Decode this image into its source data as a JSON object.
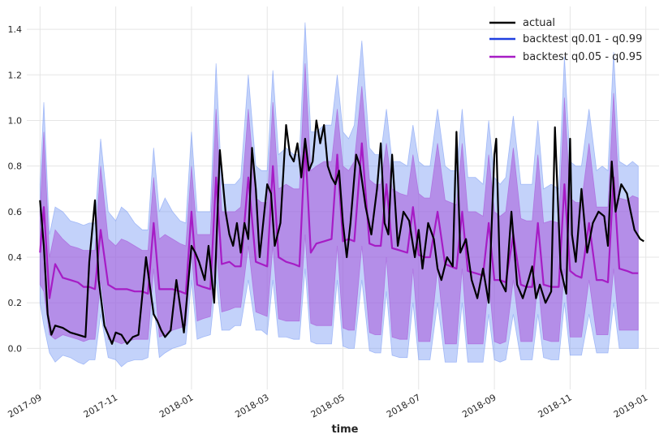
{
  "chart_data": {
    "type": "line",
    "title": "",
    "xlabel": "time",
    "ylabel": "",
    "grid": true,
    "legend_position": "top-right",
    "x_ticks": [
      "2017-09",
      "2017-11",
      "2018-01",
      "2018-03",
      "2018-05",
      "2018-07",
      "2018-09",
      "2018-11",
      "2019-01"
    ],
    "y_ticks": [
      "0.0",
      "0.2",
      "0.4",
      "0.6",
      "0.8",
      "1.0",
      "1.2",
      "1.4"
    ],
    "xlim": [
      -0.35,
      16.35
    ],
    "ylim": [
      -0.18,
      1.5
    ],
    "x_unit": "months since 2017-09",
    "series": [
      {
        "name": "actual",
        "color": "#000000",
        "x": [
          0.0,
          0.1,
          0.2,
          0.3,
          0.4,
          0.6,
          0.8,
          1.0,
          1.2,
          1.3,
          1.45,
          1.55,
          1.7,
          1.9,
          2.0,
          2.15,
          2.3,
          2.45,
          2.6,
          2.8,
          3.0,
          3.1,
          3.2,
          3.3,
          3.45,
          3.6,
          3.8,
          4.0,
          4.1,
          4.2,
          4.35,
          4.45,
          4.6,
          4.75,
          4.9,
          5.0,
          5.1,
          5.2,
          5.3,
          5.4,
          5.5,
          5.6,
          5.7,
          5.8,
          6.0,
          6.1,
          6.2,
          6.35,
          6.5,
          6.6,
          6.7,
          6.8,
          6.9,
          7.0,
          7.1,
          7.2,
          7.3,
          7.4,
          7.5,
          7.6,
          7.7,
          7.8,
          7.9,
          8.0,
          8.1,
          8.2,
          8.35,
          8.45,
          8.6,
          8.75,
          8.9,
          9.0,
          9.1,
          9.2,
          9.3,
          9.45,
          9.6,
          9.75,
          9.9,
          10.0,
          10.1,
          10.25,
          10.4,
          10.5,
          10.6,
          10.75,
          10.9,
          11.0,
          11.1,
          11.25,
          11.4,
          11.55,
          11.7,
          11.85,
          12.0,
          12.05,
          12.15,
          12.3,
          12.45,
          12.6,
          12.75,
          12.9,
          13.0,
          13.1,
          13.2,
          13.35,
          13.5,
          13.6,
          13.75,
          13.9,
          14.0,
          14.05,
          14.15,
          14.3,
          14.45,
          14.6,
          14.75,
          14.9,
          15.0,
          15.1,
          15.2,
          15.35,
          15.5,
          15.6,
          15.7,
          15.85,
          15.95
        ],
        "values": [
          0.65,
          0.45,
          0.15,
          0.06,
          0.1,
          0.09,
          0.07,
          0.06,
          0.05,
          0.38,
          0.65,
          0.3,
          0.1,
          0.02,
          0.07,
          0.06,
          0.02,
          0.05,
          0.06,
          0.4,
          0.15,
          0.12,
          0.08,
          0.05,
          0.08,
          0.3,
          0.07,
          0.45,
          0.42,
          0.38,
          0.3,
          0.45,
          0.2,
          0.87,
          0.6,
          0.5,
          0.45,
          0.55,
          0.42,
          0.55,
          0.48,
          0.88,
          0.7,
          0.4,
          0.72,
          0.68,
          0.45,
          0.55,
          0.98,
          0.85,
          0.82,
          0.9,
          0.75,
          0.92,
          0.78,
          0.82,
          1.0,
          0.9,
          0.98,
          0.8,
          0.75,
          0.72,
          0.78,
          0.55,
          0.4,
          0.55,
          0.85,
          0.8,
          0.62,
          0.5,
          0.7,
          0.9,
          0.55,
          0.5,
          0.85,
          0.45,
          0.6,
          0.56,
          0.4,
          0.52,
          0.35,
          0.55,
          0.48,
          0.35,
          0.3,
          0.4,
          0.36,
          0.95,
          0.42,
          0.48,
          0.3,
          0.22,
          0.35,
          0.2,
          0.85,
          0.92,
          0.3,
          0.25,
          0.6,
          0.28,
          0.22,
          0.3,
          0.36,
          0.22,
          0.28,
          0.2,
          0.25,
          0.97,
          0.35,
          0.24,
          0.92,
          0.5,
          0.38,
          0.7,
          0.42,
          0.55,
          0.6,
          0.58,
          0.45,
          0.82,
          0.6,
          0.72,
          0.68,
          0.6,
          0.52,
          0.48,
          0.47
        ]
      },
      {
        "name": "backtest q0.01 - q0.99",
        "color": "#1f3fe0",
        "band_color": "#7b9cf5",
        "x": [
          0.0,
          0.1,
          0.25,
          0.4,
          0.6,
          0.8,
          1.0,
          1.15,
          1.3,
          1.45,
          1.6,
          1.8,
          2.0,
          2.15,
          2.3,
          2.5,
          2.7,
          2.85,
          3.0,
          3.15,
          3.3,
          3.5,
          3.7,
          3.85,
          4.0,
          4.15,
          4.3,
          4.5,
          4.65,
          4.8,
          5.0,
          5.15,
          5.3,
          5.5,
          5.7,
          5.85,
          6.0,
          6.15,
          6.3,
          6.5,
          6.7,
          6.85,
          7.0,
          7.15,
          7.3,
          7.5,
          7.7,
          7.85,
          8.0,
          8.15,
          8.3,
          8.5,
          8.7,
          8.85,
          9.0,
          9.15,
          9.3,
          9.5,
          9.7,
          9.85,
          10.0,
          10.15,
          10.3,
          10.5,
          10.7,
          10.85,
          11.0,
          11.15,
          11.3,
          11.5,
          11.7,
          11.85,
          12.0,
          12.15,
          12.3,
          12.5,
          12.7,
          12.85,
          13.0,
          13.15,
          13.3,
          13.5,
          13.7,
          13.85,
          14.0,
          14.15,
          14.3,
          14.5,
          14.7,
          14.85,
          15.0,
          15.15,
          15.3,
          15.5,
          15.65,
          15.8
        ],
        "upper": [
          0.72,
          1.08,
          0.5,
          0.62,
          0.6,
          0.56,
          0.55,
          0.54,
          0.55,
          0.55,
          0.92,
          0.6,
          0.56,
          0.62,
          0.6,
          0.55,
          0.52,
          0.52,
          0.88,
          0.6,
          0.66,
          0.6,
          0.56,
          0.55,
          0.95,
          0.6,
          0.6,
          0.6,
          1.25,
          0.72,
          0.72,
          0.72,
          0.75,
          1.2,
          0.8,
          0.78,
          0.78,
          1.22,
          0.85,
          0.88,
          0.85,
          0.85,
          1.43,
          0.95,
          0.95,
          0.98,
          0.98,
          1.2,
          0.95,
          0.92,
          0.98,
          1.35,
          0.88,
          0.85,
          0.85,
          1.05,
          0.82,
          0.82,
          0.8,
          0.98,
          0.82,
          0.8,
          0.8,
          1.05,
          0.8,
          0.78,
          0.78,
          1.05,
          0.75,
          0.75,
          0.72,
          1.0,
          0.75,
          0.72,
          0.75,
          1.02,
          0.72,
          0.72,
          0.72,
          1.0,
          0.7,
          0.72,
          0.7,
          1.28,
          0.82,
          0.8,
          0.8,
          1.05,
          0.78,
          0.8,
          0.78,
          1.3,
          0.82,
          0.8,
          0.82,
          0.8
        ],
        "lower": [
          0.2,
          0.1,
          -0.02,
          -0.06,
          -0.03,
          -0.04,
          -0.06,
          -0.07,
          -0.05,
          -0.05,
          0.15,
          -0.04,
          -0.05,
          -0.08,
          -0.06,
          -0.05,
          -0.05,
          -0.04,
          0.2,
          -0.04,
          -0.02,
          0.0,
          0.01,
          0.02,
          0.3,
          0.04,
          0.05,
          0.06,
          0.3,
          0.08,
          0.08,
          0.1,
          0.1,
          0.3,
          0.08,
          0.08,
          0.06,
          0.3,
          0.05,
          0.05,
          0.04,
          0.04,
          0.35,
          0.03,
          0.02,
          0.02,
          0.02,
          0.3,
          0.01,
          0.0,
          0.0,
          0.3,
          -0.01,
          -0.02,
          -0.02,
          0.25,
          -0.03,
          -0.04,
          -0.04,
          0.2,
          -0.05,
          -0.05,
          -0.05,
          0.2,
          -0.06,
          -0.06,
          -0.06,
          0.2,
          -0.06,
          -0.06,
          -0.06,
          0.15,
          -0.05,
          -0.06,
          -0.05,
          0.15,
          -0.05,
          -0.05,
          -0.05,
          0.15,
          -0.04,
          -0.05,
          -0.05,
          0.2,
          -0.03,
          -0.03,
          -0.03,
          0.15,
          -0.02,
          -0.02,
          -0.02,
          0.2,
          0.0,
          0.0,
          0.0,
          0.0
        ]
      },
      {
        "name": "backtest q0.05 - q0.95",
        "color": "#a61cc5",
        "band_color": "#a855d8",
        "x": [
          0.0,
          0.1,
          0.25,
          0.4,
          0.6,
          0.8,
          1.0,
          1.15,
          1.3,
          1.45,
          1.6,
          1.8,
          2.0,
          2.15,
          2.3,
          2.5,
          2.7,
          2.85,
          3.0,
          3.15,
          3.3,
          3.5,
          3.7,
          3.85,
          4.0,
          4.15,
          4.3,
          4.5,
          4.65,
          4.8,
          5.0,
          5.15,
          5.3,
          5.5,
          5.7,
          5.85,
          6.0,
          6.15,
          6.3,
          6.5,
          6.7,
          6.85,
          7.0,
          7.15,
          7.3,
          7.5,
          7.7,
          7.85,
          8.0,
          8.15,
          8.3,
          8.5,
          8.7,
          8.85,
          9.0,
          9.15,
          9.3,
          9.5,
          9.7,
          9.85,
          10.0,
          10.15,
          10.3,
          10.5,
          10.7,
          10.85,
          11.0,
          11.15,
          11.3,
          11.5,
          11.7,
          11.85,
          12.0,
          12.15,
          12.3,
          12.5,
          12.7,
          12.85,
          13.0,
          13.15,
          13.3,
          13.5,
          13.7,
          13.85,
          14.0,
          14.15,
          14.3,
          14.5,
          14.7,
          14.85,
          15.0,
          15.15,
          15.3,
          15.5,
          15.65,
          15.8
        ],
        "values": [
          0.42,
          0.62,
          0.22,
          0.37,
          0.31,
          0.3,
          0.29,
          0.27,
          0.27,
          0.26,
          0.52,
          0.28,
          0.26,
          0.26,
          0.26,
          0.25,
          0.25,
          0.24,
          0.55,
          0.26,
          0.26,
          0.26,
          0.25,
          0.24,
          0.6,
          0.28,
          0.27,
          0.26,
          0.75,
          0.37,
          0.38,
          0.36,
          0.36,
          0.75,
          0.38,
          0.37,
          0.36,
          0.8,
          0.4,
          0.38,
          0.37,
          0.36,
          0.9,
          0.42,
          0.46,
          0.47,
          0.48,
          0.85,
          0.47,
          0.48,
          0.47,
          0.9,
          0.46,
          0.45,
          0.45,
          0.72,
          0.44,
          0.43,
          0.42,
          0.62,
          0.41,
          0.4,
          0.4,
          0.6,
          0.37,
          0.36,
          0.35,
          0.6,
          0.34,
          0.33,
          0.32,
          0.55,
          0.3,
          0.3,
          0.29,
          0.5,
          0.28,
          0.27,
          0.27,
          0.55,
          0.28,
          0.27,
          0.27,
          0.72,
          0.34,
          0.32,
          0.31,
          0.55,
          0.3,
          0.3,
          0.29,
          0.75,
          0.35,
          0.34,
          0.33,
          0.33
        ],
        "upper": [
          0.6,
          0.95,
          0.4,
          0.52,
          0.48,
          0.45,
          0.44,
          0.43,
          0.43,
          0.43,
          0.8,
          0.48,
          0.45,
          0.48,
          0.47,
          0.45,
          0.43,
          0.43,
          0.75,
          0.48,
          0.5,
          0.48,
          0.46,
          0.45,
          0.8,
          0.5,
          0.5,
          0.5,
          1.05,
          0.6,
          0.6,
          0.6,
          0.62,
          1.05,
          0.66,
          0.64,
          0.64,
          1.08,
          0.7,
          0.72,
          0.7,
          0.7,
          1.25,
          0.78,
          0.8,
          0.82,
          0.82,
          1.05,
          0.8,
          0.78,
          0.82,
          1.15,
          0.74,
          0.72,
          0.72,
          0.9,
          0.7,
          0.68,
          0.67,
          0.85,
          0.68,
          0.66,
          0.66,
          0.9,
          0.65,
          0.64,
          0.63,
          0.9,
          0.6,
          0.6,
          0.58,
          0.85,
          0.6,
          0.58,
          0.6,
          0.88,
          0.57,
          0.56,
          0.56,
          0.85,
          0.55,
          0.56,
          0.55,
          1.1,
          0.66,
          0.64,
          0.64,
          0.9,
          0.62,
          0.62,
          0.62,
          1.12,
          0.66,
          0.65,
          0.67,
          0.66
        ],
        "lower": [
          0.28,
          0.25,
          0.06,
          0.04,
          0.06,
          0.05,
          0.04,
          0.03,
          0.04,
          0.04,
          0.3,
          0.04,
          0.03,
          0.02,
          0.03,
          0.04,
          0.04,
          0.04,
          0.35,
          0.05,
          0.06,
          0.08,
          0.09,
          0.1,
          0.42,
          0.12,
          0.13,
          0.14,
          0.45,
          0.16,
          0.17,
          0.18,
          0.18,
          0.45,
          0.16,
          0.15,
          0.14,
          0.45,
          0.13,
          0.12,
          0.12,
          0.12,
          0.5,
          0.11,
          0.1,
          0.1,
          0.1,
          0.45,
          0.09,
          0.08,
          0.08,
          0.45,
          0.07,
          0.06,
          0.06,
          0.4,
          0.05,
          0.04,
          0.04,
          0.35,
          0.03,
          0.03,
          0.03,
          0.35,
          0.02,
          0.02,
          0.02,
          0.35,
          0.02,
          0.02,
          0.02,
          0.3,
          0.03,
          0.02,
          0.03,
          0.3,
          0.03,
          0.03,
          0.03,
          0.3,
          0.04,
          0.03,
          0.03,
          0.35,
          0.05,
          0.05,
          0.05,
          0.3,
          0.06,
          0.06,
          0.06,
          0.35,
          0.08,
          0.08,
          0.08,
          0.08
        ]
      }
    ]
  }
}
